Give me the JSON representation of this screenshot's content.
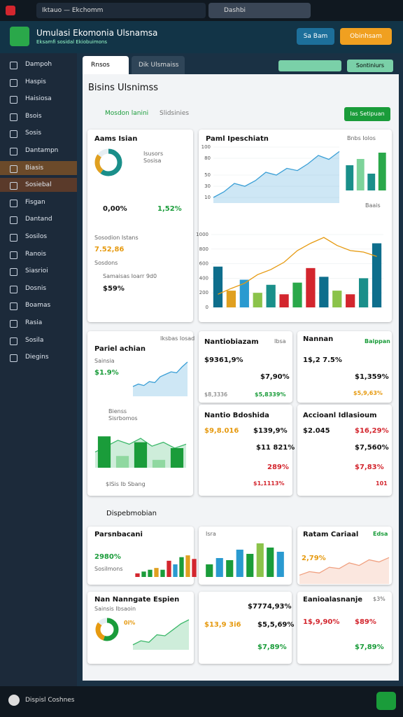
{
  "topbar": {
    "tab": "Iktauo — Ekchomm",
    "address": "Dashbi"
  },
  "header": {
    "title": "Umulasi Ekomonia Ulsnamsa",
    "subtitle": "Eksamfi sosidal Ekiobuimons",
    "buttons": [
      "Sa Bam",
      "Obinhsam"
    ]
  },
  "sidebar": [
    "Dampoh",
    "Haspis",
    "Haisiosa",
    "Bsois",
    "Sosis",
    "Dantampn",
    "Biasis",
    "Sosiebal",
    "Fisgan",
    "Dantand",
    "Sosilos",
    "Ranois",
    "Siasrioi",
    "Dosnis",
    "Boamas",
    "Rasia",
    "Sosila",
    "Diegins"
  ],
  "tabs": [
    "Rnsos",
    "Dik Ulsmaiss"
  ],
  "toolbar": {
    "button": "Sontiniurs"
  },
  "panel": {
    "title": "Bisins Ulsnimss",
    "subtitle": "Mosdon lanini",
    "subtitle2": "Slidsinies",
    "action": "Ias Setipuan",
    "section": "Dispebmobian"
  },
  "cards": {
    "a": [
      "Aams Isian",
      "Isusors",
      "Sosisa",
      "0,00%",
      "1,52%",
      "Sosodion Istans",
      "7.52,86",
      "Sosdons",
      "Samaisas Ioarr 9d0",
      "$59%"
    ],
    "b": [
      "Paml Ipeschiatn",
      "Bnbs Iolos",
      "Baais"
    ],
    "c": [
      "Iksbas Iosad",
      "Pariel achian",
      "Sainsia",
      "$1.9%",
      "Bienss",
      "Sisrbomos",
      "$ISis Ib Sbang"
    ],
    "d": [
      "Nantiobiazam",
      "Ibsa",
      "$9361,9%",
      "$7,90%",
      "$8,3336",
      "$5,8339%"
    ],
    "e": [
      "Nannan",
      "Baippan",
      "1$,2 7.5%",
      "$1,359%",
      "$5,9,63%"
    ],
    "f": [
      "Nantio Bdoshida",
      "$9,8.016",
      "$139,9%",
      "$11 821%",
      "289%",
      "$1,1113%"
    ],
    "g": [
      "Accioanl Idlasioum",
      "$2.045",
      "$16,29%",
      "$7,560%",
      "$7,83%",
      "101"
    ],
    "h": [
      "Parsnbacani",
      "2980%",
      "Sosilmons"
    ],
    "i": [
      "Isra"
    ],
    "j": [
      "Ratam Cariaal",
      "Edsa",
      "2,79%"
    ],
    "k": [
      "Nan Nanngate Espien",
      "Sainsis Ibsaoin",
      "0i%"
    ],
    "l": [
      "$7774,93%",
      "$13,9 3i6",
      "$5,5,69%",
      "$7,89%"
    ],
    "m": [
      "Eanioalasnanje",
      "$3%",
      "1$,9,90%",
      "$89%",
      "$7,89%"
    ]
  },
  "footer": {
    "label": "Dispisl Coshnes"
  },
  "chart_data": [
    {
      "type": "line",
      "area": true,
      "color": "#3a9fd6",
      "values": [
        10,
        20,
        35,
        30,
        40,
        55,
        50,
        62,
        58,
        70,
        85,
        78,
        92
      ],
      "ylim": [
        0,
        100
      ],
      "yticks": [
        10,
        30,
        50,
        80,
        100
      ]
    },
    {
      "type": "bar",
      "colors": [
        "#1a8f8a",
        "#7dd39a",
        "#1a8f8a",
        "#2aa84a"
      ],
      "values": [
        60,
        75,
        40,
        90
      ],
      "ylim": [
        0,
        100
      ]
    },
    {
      "type": "bar",
      "colors": [
        "#0e6e8c",
        "#e0a020",
        "#2a9ad0",
        "#8bc34a",
        "#1a8f8a",
        "#d3262e",
        "#2aa84a",
        "#d3262e",
        "#0e6e8c",
        "#8bc34a",
        "#d3262e",
        "#1a8f8a",
        "#0e6e8c"
      ],
      "values": [
        560,
        230,
        380,
        200,
        310,
        180,
        340,
        540,
        420,
        230,
        180,
        400,
        880
      ],
      "line": {
        "color": "#e69a10",
        "values": [
          180,
          260,
          330,
          450,
          520,
          620,
          780,
          880,
          960,
          850,
          780,
          760,
          700
        ]
      },
      "ylim": [
        0,
        1000
      ],
      "yticks": [
        0,
        200,
        400,
        600,
        800,
        1000
      ]
    },
    {
      "type": "line",
      "area": true,
      "color": "#3a9fd6",
      "values": [
        20,
        25,
        22,
        30,
        28,
        40,
        45,
        50,
        48,
        60,
        70
      ],
      "ylim": [
        0,
        80
      ]
    },
    {
      "type": "bar",
      "colors": [
        "#1a9c3a",
        "#8fd8a0",
        "#1a9c3a",
        "#8fd8a0",
        "#1a9c3a"
      ],
      "values": [
        80,
        30,
        65,
        20,
        50
      ],
      "ylim": [
        0,
        100
      ],
      "area_line": [
        40,
        55,
        70,
        60,
        75,
        55,
        65,
        50,
        60
      ]
    },
    {
      "type": "bar",
      "colors": [
        "#d3262e",
        "#1a9c3a",
        "#1a9c3a",
        "#e0a020",
        "#1a9c3a",
        "#d3262e",
        "#2a9ad0",
        "#1a9c3a",
        "#e0a020",
        "#d3262e"
      ],
      "values": [
        10,
        15,
        20,
        25,
        20,
        45,
        35,
        55,
        60,
        50
      ],
      "ylim": [
        0,
        70
      ]
    },
    {
      "type": "bar",
      "colors": [
        "#1a9c3a",
        "#2a9ad0",
        "#1a9c3a",
        "#2a9ad0",
        "#1a9c3a",
        "#8bc34a",
        "#1a9c3a",
        "#2a9ad0"
      ],
      "values": [
        30,
        45,
        40,
        65,
        55,
        80,
        70,
        60
      ],
      "ylim": [
        0,
        90
      ]
    },
    {
      "type": "line",
      "area": true,
      "color": "#f0a080",
      "values": [
        20,
        28,
        25,
        38,
        35,
        48,
        42,
        55,
        50,
        60
      ],
      "ylim": [
        0,
        70
      ]
    },
    {
      "type": "line",
      "area": true,
      "color": "#3cb86a",
      "values": [
        10,
        18,
        15,
        30,
        28,
        40,
        52,
        60
      ],
      "ylim": [
        0,
        70
      ]
    },
    {
      "type": "pie",
      "colors": [
        "#1a8f8a",
        "#e0a020",
        "#e6eef2"
      ],
      "values": [
        60,
        25,
        15
      ]
    },
    {
      "type": "pie",
      "colors": [
        "#1a9c3a",
        "#e69a10",
        "#e6eef2"
      ],
      "values": [
        55,
        30,
        15
      ]
    }
  ]
}
